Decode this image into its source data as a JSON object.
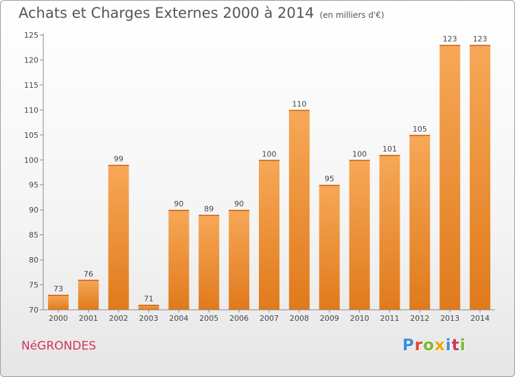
{
  "header": {
    "title": "Achats et Charges Externes 2000 à 2014",
    "subtitle": "(en milliers d'€)"
  },
  "footer": {
    "commune": "NéGRONDES",
    "brand": "Proxiti"
  },
  "colors": {
    "bar_light": "#f7a857",
    "bar_dark": "#e07a1c",
    "brand_letters": [
      "#3a8fd8",
      "#e8452c",
      "#79b82e",
      "#f0a400",
      "#3a8fd8",
      "#d1345b",
      "#79b82e"
    ]
  },
  "chart_data": {
    "type": "bar",
    "title": "Achats et Charges Externes 2000 à 2014",
    "xlabel": "",
    "ylabel": "",
    "categories": [
      "2000",
      "2001",
      "2002",
      "2003",
      "2004",
      "2005",
      "2006",
      "2007",
      "2008",
      "2009",
      "2010",
      "2011",
      "2012",
      "2013",
      "2014"
    ],
    "values": [
      73,
      76,
      99,
      71,
      90,
      89,
      90,
      100,
      110,
      95,
      100,
      101,
      105,
      123,
      123
    ],
    "ylim": [
      70,
      125
    ],
    "yticks": [
      70,
      75,
      80,
      85,
      90,
      95,
      100,
      105,
      110,
      115,
      120,
      125
    ],
    "grid": false,
    "legend": "none"
  }
}
